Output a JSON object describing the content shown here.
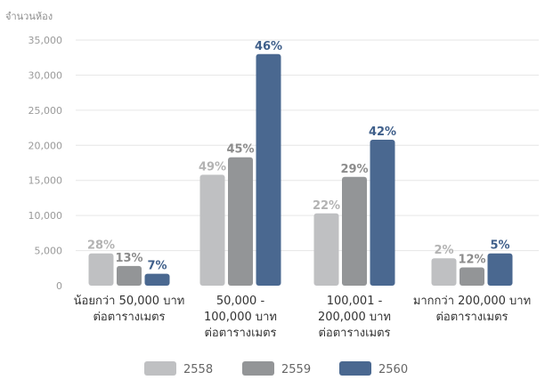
{
  "chart_data": {
    "type": "bar",
    "ylabel": "จำนวนห้อง",
    "ylim": [
      0,
      35000
    ],
    "yticks": [
      "0",
      "5,000",
      "10,000",
      "15,000",
      "20,000",
      "25,000",
      "30,000",
      "35,000"
    ],
    "grid": true,
    "legend_placement": "bottom",
    "categories": [
      [
        "น้อยกว่า 50,000 บาท",
        "ต่อตารางเมตร"
      ],
      [
        "50,000 -",
        "100,000 บาท",
        "ต่อตารางเมตร"
      ],
      [
        "100,001 -",
        "200,000 บาท",
        "ต่อตารางเมตร"
      ],
      [
        "มากกว่า 200,000 บาท",
        "ต่อตารางเมตร"
      ]
    ],
    "series": [
      {
        "name": "2558",
        "color": "#bfc0c2",
        "label_color": "#b3b3b3",
        "values": [
          4600,
          15800,
          10300,
          3900
        ],
        "labels": [
          "28%",
          "49%",
          "22%",
          "2%"
        ]
      },
      {
        "name": "2559",
        "color": "#939597",
        "label_color": "#8c8c8c",
        "values": [
          2800,
          18300,
          15500,
          2600
        ],
        "labels": [
          "13%",
          "45%",
          "29%",
          "12%"
        ]
      },
      {
        "name": "2560",
        "color": "#4a6890",
        "label_color": "#3f5f8a",
        "values": [
          1700,
          33000,
          20800,
          4600
        ],
        "labels": [
          "7%",
          "46%",
          "42%",
          "5%"
        ]
      }
    ]
  }
}
